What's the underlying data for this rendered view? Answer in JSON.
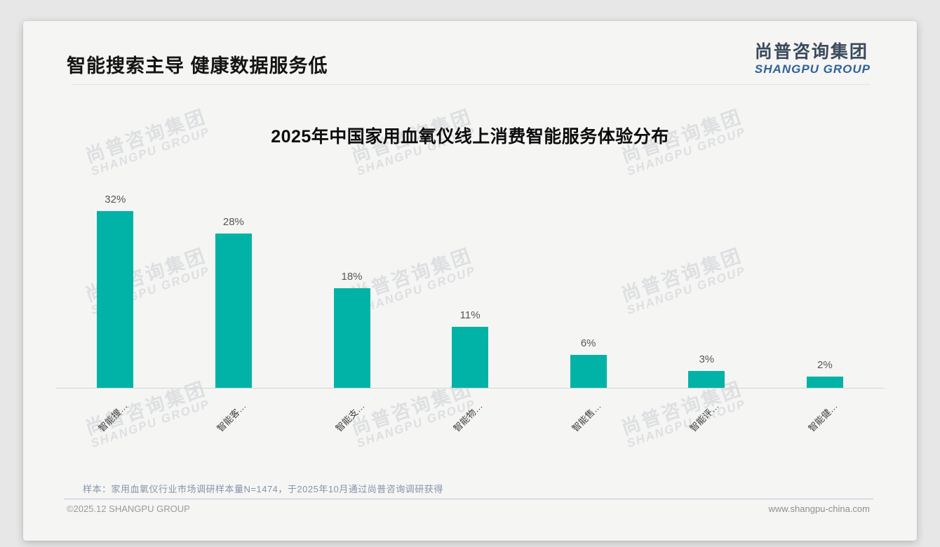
{
  "page": {
    "header": {
      "title": "智能搜索主导 健康数据服务低"
    },
    "logo": {
      "cn": "尚普咨询集团",
      "en": "SHANGPU GROUP"
    },
    "watermark": {
      "cn": "尚普咨询集团",
      "en": "SHANGPU GROUP"
    },
    "footer": {
      "sample_note": "样本：家用血氧仪行业市场调研样本量N=1474，于2025年10月通过尚普咨询调研获得",
      "copyright": "©2025.12 SHANGPU GROUP",
      "website": "www.shangpu-china.com"
    }
  },
  "chart_data": {
    "type": "bar",
    "title": "2025年中国家用血氧仪线上消费智能服务体验分布",
    "categories": [
      "智能搜…",
      "智能客…",
      "智能支…",
      "智能物…",
      "智能售…",
      "智能评…",
      "智能健…"
    ],
    "values": [
      32,
      28,
      18,
      11,
      6,
      3,
      2
    ],
    "value_labels": [
      "32%",
      "28%",
      "18%",
      "11%",
      "6%",
      "3%",
      "2%"
    ],
    "unit": "%",
    "bar_color": "#00b3a6",
    "ylim": [
      0,
      35
    ],
    "grid": false,
    "legend": false,
    "x_label_rotation_deg": 45
  }
}
